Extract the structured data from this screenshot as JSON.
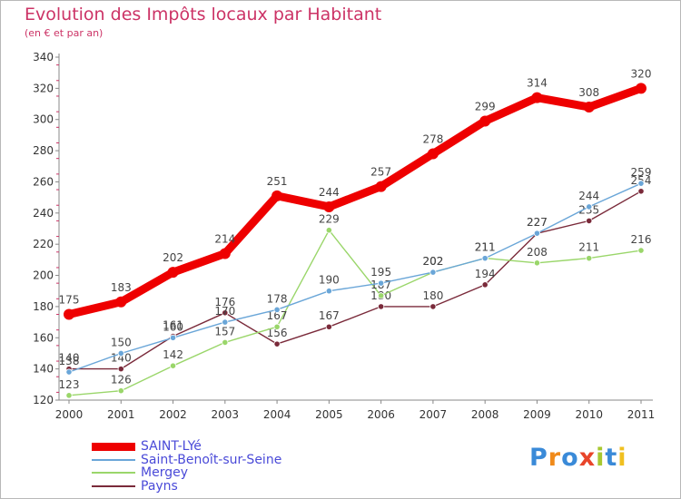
{
  "title": "Evolution des Impôts locaux par Habitant",
  "subtitle": "(en € et par an)",
  "logo": {
    "text": "Proxiti",
    "colors": [
      "#3a8ad8",
      "#f08a1a",
      "#3a8ad8",
      "#e8452a",
      "#a8c830",
      "#3a8ad8",
      "#f0c020"
    ]
  },
  "chart_data": {
    "type": "line",
    "title": "Evolution des Impôts locaux par Habitant",
    "xlabel": "",
    "ylabel": "(en € et par an)",
    "x": [
      "2000",
      "2001",
      "2002",
      "2003",
      "2004",
      "2005",
      "2006",
      "2007",
      "2008",
      "2009",
      "2010",
      "2011"
    ],
    "ylim": [
      120,
      340
    ],
    "yticks": [
      120,
      140,
      160,
      180,
      200,
      220,
      240,
      260,
      280,
      300,
      320,
      340
    ],
    "grid": false,
    "legend_position": "bottom-left",
    "series": [
      {
        "name": "SAINT-LYé",
        "color": "#ee0000",
        "values": [
          175,
          183,
          202,
          214,
          251,
          244,
          257,
          278,
          299,
          314,
          308,
          320
        ]
      },
      {
        "name": "Saint-Benoît-sur-Seine",
        "color": "#6aa6d8",
        "values": [
          138,
          150,
          160,
          170,
          178,
          190,
          195,
          202,
          211,
          227,
          244,
          259
        ]
      },
      {
        "name": "Mergey",
        "color": "#9ad66a",
        "values": [
          123,
          126,
          142,
          157,
          167,
          229,
          187,
          202,
          211,
          208,
          211,
          216
        ]
      },
      {
        "name": "Payns",
        "color": "#7a2a3a",
        "values": [
          140,
          140,
          161,
          176,
          156,
          167,
          180,
          180,
          194,
          227,
          235,
          254
        ]
      }
    ]
  }
}
